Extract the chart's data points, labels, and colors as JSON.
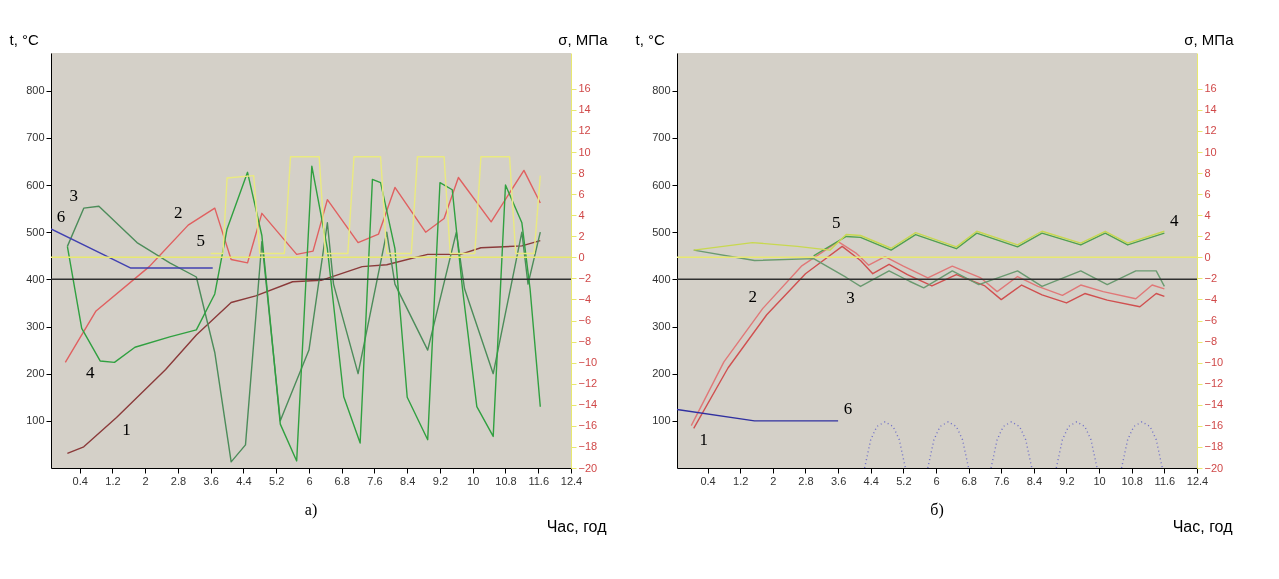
{
  "chart_data": [
    {
      "type": "line",
      "xlabel": "Час, год",
      "ylabel": "t, °C",
      "y2label": "σ, МПа",
      "xlim": [
        -0.3,
        12.4
      ],
      "xticks": [
        0.4,
        1.2,
        2,
        2.8,
        3.6,
        4.4,
        5.2,
        6,
        6.8,
        7.6,
        8.4,
        9.2,
        10,
        10.8,
        11.6,
        12.4
      ],
      "ylim": [
        0,
        880
      ],
      "yticks": [
        100,
        200,
        300,
        400,
        500,
        600,
        700,
        800
      ],
      "y2lim": [
        -20,
        19.4
      ],
      "y2ticks": [
        -20,
        -18,
        -16,
        -14,
        -12,
        -10,
        -8,
        -6,
        -4,
        -2,
        0,
        2,
        4,
        6,
        8,
        10,
        12,
        14,
        16
      ],
      "series": [
        {
          "name": "1",
          "color": "#8b3a3a",
          "x": [
            0.1,
            0.5,
            1.3,
            2.5,
            3.25,
            4.1,
            4.7,
            5.6,
            6.3,
            7.3,
            7.9,
            8.9,
            9.7,
            10.2,
            11.2,
            11.65
          ],
          "values": [
            31,
            45,
            107,
            209,
            282,
            351,
            365,
            395,
            398,
            427,
            431,
            453,
            453,
            467,
            471,
            482
          ]
        },
        {
          "name": "2",
          "color": "#e06060",
          "x": [
            0.05,
            0.8,
            2.1,
            3.05,
            3.7,
            4.1,
            4.5,
            4.85,
            5.7,
            6.1,
            6.45,
            7.2,
            7.7,
            8.1,
            8.85,
            9.3,
            9.65,
            10.45,
            11.25,
            11.65
          ],
          "values": [
            224,
            333,
            427,
            515,
            551,
            442,
            435,
            540,
            453,
            460,
            569,
            478,
            496,
            595,
            500,
            529,
            616,
            522,
            631,
            562
          ]
        },
        {
          "name": "3",
          "color": "#4c8c5a",
          "x": [
            0.1,
            0.5,
            0.87,
            1.8,
            2.6,
            3.25,
            3.7,
            4.1,
            4.45,
            4.85,
            5.3,
            6.0,
            6.45,
            6.6,
            7.2,
            7.9,
            8.1,
            8.9,
            9.6,
            9.8,
            10.5,
            11.2,
            11.35,
            11.65
          ],
          "values": [
            470,
            551,
            555,
            478,
            435,
            405,
            245,
            13,
            49,
            480,
            100,
            250,
            520,
            390,
            200,
            500,
            390,
            250,
            500,
            380,
            200,
            500,
            390,
            500
          ]
        },
        {
          "name": "4",
          "color": "#30a040",
          "x": [
            0.1,
            0.45,
            0.9,
            1.25,
            1.75,
            2.6,
            3.25,
            3.7,
            4.0,
            4.5,
            4.85,
            5.3,
            5.7,
            6.07,
            6.45,
            6.85,
            7.25,
            7.55,
            7.75,
            8.1,
            8.4,
            8.9,
            9.2,
            9.5,
            9.75,
            10.1,
            10.5,
            10.8,
            11.2,
            11.4,
            11.65
          ],
          "values": [
            470,
            296,
            227,
            224,
            256,
            278,
            293,
            369,
            507,
            627,
            493,
            93,
            15,
            640,
            465,
            151,
            53,
            612,
            605,
            465,
            150,
            60,
            605,
            590,
            380,
            130,
            67,
            600,
            520,
            380,
            130
          ]
        },
        {
          "name": "5",
          "color": "#eaea80",
          "x": [
            3.6,
            3.9,
            4.0,
            4.65,
            4.8,
            5.4,
            5.55,
            6.25,
            6.4,
            6.95,
            7.1,
            7.75,
            7.9,
            8.5,
            8.65,
            9.3,
            9.45,
            10.05,
            10.2,
            10.9,
            11.05,
            11.5,
            11.65
          ],
          "values": [
            455,
            455,
            615,
            620,
            455,
            455,
            660,
            660,
            455,
            455,
            660,
            660,
            455,
            455,
            660,
            660,
            455,
            455,
            660,
            660,
            455,
            455,
            620
          ]
        },
        {
          "name": "6",
          "color": "#4040b0",
          "x": [
            -0.3,
            1.65,
            3.65
          ],
          "values": [
            507,
            424,
            424
          ]
        }
      ],
      "ref_lines": [
        {
          "axis": "y",
          "value": 400,
          "color": "#303030"
        },
        {
          "axis": "y2",
          "value": 0,
          "color": "#e8e870"
        }
      ],
      "annotations": [
        "а)"
      ]
    },
    {
      "type": "line",
      "xlabel": "Час, год",
      "ylabel": "t, °C",
      "y2label": "σ, МПа",
      "xlim": [
        -0.35,
        12.4
      ],
      "xticks": [
        0.4,
        1.2,
        2,
        2.8,
        3.6,
        4.4,
        5.2,
        6,
        6.8,
        7.6,
        8.4,
        9.2,
        10,
        10.8,
        11.6,
        12.4
      ],
      "ylim": [
        0,
        880
      ],
      "yticks": [
        100,
        200,
        300,
        400,
        500,
        600,
        700,
        800
      ],
      "y2lim": [
        -20,
        19.4
      ],
      "y2ticks": [
        -20,
        -18,
        -16,
        -14,
        -12,
        -10,
        -8,
        -6,
        -4,
        -2,
        0,
        2,
        4,
        6,
        8,
        10,
        12,
        14,
        16
      ],
      "series": [
        {
          "name": "1",
          "color": "#d05050",
          "x": [
            0.06,
            0.9,
            1.85,
            2.8,
            3.7,
            4.15,
            4.45,
            4.85,
            5.3,
            5.9,
            6.5,
            7.2,
            7.6,
            8.1,
            8.6,
            9.2,
            9.65,
            10.2,
            11.0,
            11.4,
            11.6
          ],
          "values": [
            84,
            212,
            325,
            412,
            470,
            440,
            412,
            432,
            410,
            386,
            410,
            386,
            357,
            388,
            367,
            350,
            370,
            356,
            342,
            370,
            364
          ]
        },
        {
          "name": "2",
          "color": "#e07878",
          "x": [
            0.0,
            0.8,
            1.75,
            2.7,
            3.6,
            4.05,
            4.35,
            4.75,
            5.2,
            5.8,
            6.4,
            7.1,
            7.5,
            8.0,
            8.5,
            9.1,
            9.55,
            10.1,
            10.9,
            11.3,
            11.6
          ],
          "values": [
            90,
            225,
            338,
            428,
            480,
            455,
            430,
            448,
            428,
            403,
            428,
            403,
            374,
            406,
            385,
            366,
            388,
            374,
            359,
            388,
            380
          ]
        },
        {
          "name": "3",
          "color": "#6a9a70",
          "x": [
            0.06,
            1.55,
            3.0,
            3.8,
            4.15,
            4.85,
            5.35,
            5.7,
            6.4,
            7.05,
            8.0,
            8.6,
            9.55,
            10.2,
            10.9,
            11.4,
            11.6
          ],
          "values": [
            462,
            440,
            444,
            404,
            385,
            418,
            396,
            382,
            418,
            389,
            418,
            385,
            418,
            389,
            418,
            418,
            385
          ]
        },
        {
          "name": "4",
          "color": "#50a050",
          "x": [
            3.0,
            3.8,
            4.15,
            4.9,
            5.5,
            6.5,
            7.0,
            8.0,
            8.6,
            9.55,
            10.15,
            10.7,
            11.6
          ],
          "values": [
            450,
            491,
            489,
            462,
            495,
            465,
            498,
            469,
            498,
            473,
            498,
            473,
            498
          ]
        },
        {
          "name": "5",
          "color": "#c8d850",
          "x": [
            0.06,
            1.5,
            2.6,
            3.4,
            3.8,
            4.15,
            4.9,
            5.5,
            6.5,
            7.0,
            8.0,
            8.6,
            9.55,
            10.15,
            10.7,
            11.6
          ],
          "values": [
            462,
            478,
            470,
            462,
            495,
            493,
            466,
            499,
            469,
            502,
            473,
            502,
            477,
            502,
            477,
            502
          ]
        },
        {
          "name": "6",
          "color": "#3030a0",
          "x": [
            -0.35,
            1.55,
            3.6
          ],
          "values": [
            124,
            100,
            100
          ]
        },
        {
          "color": "#7070c8",
          "line_style": "dotted",
          "x": [
            4.25,
            4.4,
            4.55,
            4.75,
            4.95,
            5.1,
            5.25,
            5.5,
            5.8,
            5.95,
            6.1,
            6.3,
            6.5,
            6.65,
            6.8,
            7.1,
            7.35,
            7.5,
            7.65,
            7.85,
            8.05,
            8.2,
            8.35,
            8.6,
            8.95,
            9.1,
            9.25,
            9.45,
            9.65,
            9.8,
            9.95,
            10.2,
            10.55,
            10.7,
            10.85,
            11.05,
            11.25,
            11.4,
            11.55
          ],
          "values": [
            0,
            60,
            88,
            98,
            88,
            60,
            0,
            null,
            0,
            60,
            88,
            98,
            88,
            60,
            0,
            null,
            0,
            60,
            88,
            98,
            88,
            60,
            0,
            null,
            0,
            60,
            88,
            98,
            88,
            60,
            0,
            null,
            0,
            60,
            88,
            98,
            88,
            60,
            0
          ]
        }
      ],
      "ref_lines": [
        {
          "axis": "y",
          "value": 400,
          "color": "#303030"
        },
        {
          "axis": "y2",
          "value": 0,
          "color": "#e8e870"
        }
      ],
      "annotations": [
        "б)"
      ]
    }
  ]
}
